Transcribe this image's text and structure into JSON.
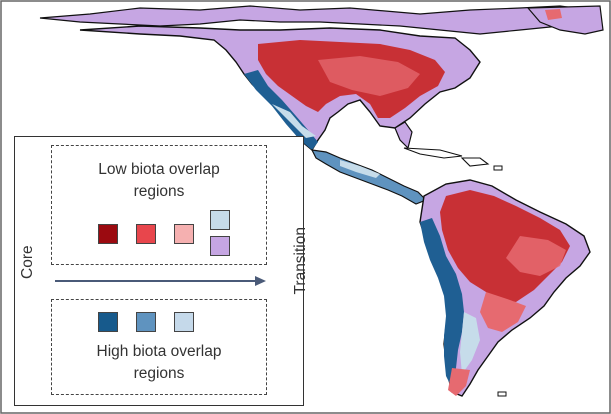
{
  "colors": {
    "low_1": "#9b0a10",
    "low_2": "#e8464c",
    "low_3": "#f5b0b0",
    "lilac": "#c6a6e3",
    "pale_blue": "#c6dcea",
    "high_1": "#175a8c",
    "high_2": "#5f93bf",
    "high_3": "#c5d9ea",
    "map_red": "#c83035",
    "map_red_light": "#e66a70",
    "map_dark_blue": "#1f5f93"
  },
  "legend": {
    "low_title_line1": "Low biota overlap",
    "low_title_line2": "regions",
    "high_title_line1": "High biota overlap",
    "high_title_line2": "regions",
    "axis_start": "Core",
    "axis_end": "Transition"
  }
}
